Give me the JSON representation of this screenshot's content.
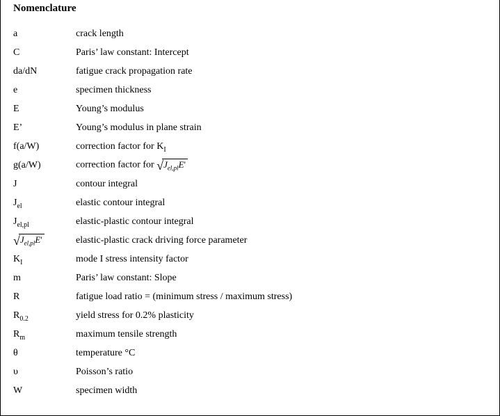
{
  "title": "Nomenclature",
  "jexpr": {
    "radical_glyph": "√",
    "J": "J",
    "sub": "el,pl",
    "E": "E",
    "prime": "'"
  },
  "rows": [
    {
      "sym_html": "a",
      "def": "crack length"
    },
    {
      "sym_html": "C",
      "def": "Paris’ law constant: Intercept"
    },
    {
      "sym_html": "da/dN",
      "def": "fatigue crack propagation rate"
    },
    {
      "sym_html": "e",
      "def": "specimen thickness"
    },
    {
      "sym_html": "E",
      "def": "Young’s modulus"
    },
    {
      "sym_html": "E’",
      "def": "Young’s modulus in plane strain"
    },
    {
      "sym_html": "f(a/W)",
      "def": "correction factor for K",
      "def_trailing_sub": "I"
    },
    {
      "sym_html": "g(a/W)",
      "def": "correction factor for ",
      "def_has_sqrt": true,
      "tall": true
    },
    {
      "sym_html": "J",
      "def": "contour integral"
    },
    {
      "sym_html": "J<span class=\"sub\">el</span>",
      "def": "elastic contour integral"
    },
    {
      "sym_html": "J<span class=\"sub\">el,pl</span>",
      "def": "elastic-plastic contour integral"
    },
    {
      "sym_is_sqrt": true,
      "def": "elastic-plastic crack driving force parameter",
      "tall": true
    },
    {
      "sym_html": "K<span class=\"sub\">I</span>",
      "def": "mode I stress intensity factor"
    },
    {
      "sym_html": "m",
      "def": "Paris’ law constant: Slope"
    },
    {
      "sym_html": "R",
      "def": "fatigue load ratio = (minimum stress / maximum stress)"
    },
    {
      "sym_html": "R<span class=\"sub\">0.2</span>",
      "def": "yield stress for 0.2% plasticity"
    },
    {
      "sym_html": "R<span class=\"sub\">m</span>",
      "def": "maximum tensile strength"
    },
    {
      "sym_html": "θ",
      "def": "temperature °C"
    },
    {
      "sym_html": "υ",
      "def": "Poisson’s ratio"
    },
    {
      "sym_html": "W",
      "def": "specimen width"
    }
  ]
}
